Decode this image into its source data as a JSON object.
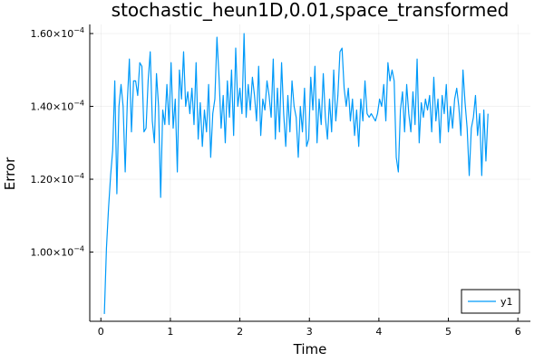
{
  "chart_data": {
    "type": "line",
    "title": "stochastic_heun1D,0.01,space_transformed",
    "xlabel": "Time",
    "ylabel": "Error",
    "xlim": [
      -0.16,
      6.18
    ],
    "ylim": [
      8.1e-05,
      0.0001625
    ],
    "x_ticks": [
      0,
      1,
      2,
      3,
      4,
      5,
      6
    ],
    "x_tick_labels": [
      "0",
      "1",
      "2",
      "3",
      "4",
      "5",
      "6"
    ],
    "y_ticks": [
      0.0001,
      0.00012,
      0.00014,
      0.00016
    ],
    "y_tick_labels": [
      {
        "mantissa": "1.00",
        "exp": "−4"
      },
      {
        "mantissa": "1.20",
        "exp": "−4"
      },
      {
        "mantissa": "1.40",
        "exp": "−4"
      },
      {
        "mantissa": "1.60",
        "exp": "−4"
      }
    ],
    "y_tick_base": "×10",
    "grid": true,
    "legend_position": "bottom-right",
    "series": [
      {
        "name": "y1",
        "color": "#009af9",
        "x_start": 0.05,
        "x_step": 0.03,
        "values": [
          8.3e-05,
          0.000101,
          0.000112,
          0.000121,
          0.000128,
          0.000147,
          0.000116,
          0.00014,
          0.000146,
          0.00014,
          0.000122,
          0.000141,
          0.000153,
          0.000133,
          0.000147,
          0.000147,
          0.000143,
          0.000152,
          0.000151,
          0.000133,
          0.000134,
          0.000147,
          0.000155,
          0.000136,
          0.00013,
          0.000149,
          0.00014,
          0.000115,
          0.000139,
          0.000135,
          0.000146,
          0.000135,
          0.000152,
          0.000134,
          0.000142,
          0.000122,
          0.00015,
          0.000142,
          0.000155,
          0.00014,
          0.000144,
          0.000138,
          0.000145,
          0.000135,
          0.000152,
          0.000131,
          0.000141,
          0.000129,
          0.000139,
          0.000133,
          0.000146,
          0.000126,
          0.000138,
          0.000142,
          0.000159,
          0.000148,
          0.000134,
          0.000143,
          0.00013,
          0.000147,
          0.000137,
          0.00015,
          0.000132,
          0.000156,
          0.00014,
          0.000145,
          0.000138,
          0.00016,
          0.000137,
          0.000146,
          0.000139,
          0.000148,
          0.000143,
          0.000136,
          0.000151,
          0.000132,
          0.000142,
          0.000139,
          0.000147,
          0.000143,
          0.000137,
          0.000153,
          0.000131,
          0.000145,
          0.000133,
          0.000152,
          0.000138,
          0.000129,
          0.000143,
          0.000133,
          0.000147,
          0.00014,
          0.000137,
          0.000126,
          0.00014,
          0.000133,
          0.000145,
          0.000129,
          0.000131,
          0.000148,
          0.000139,
          0.000151,
          0.00013,
          0.000142,
          0.000135,
          0.000149,
          0.000137,
          0.000131,
          0.000142,
          0.000133,
          0.00015,
          0.000136,
          0.000143,
          0.000155,
          0.000156,
          0.000145,
          0.00014,
          0.000145,
          0.000136,
          0.000142,
          0.000132,
          0.000139,
          0.000129,
          0.000142,
          0.000136,
          0.000147,
          0.000138,
          0.000137,
          0.000138,
          0.000137,
          0.000136,
          0.000138,
          0.000142,
          0.00014,
          0.000146,
          0.000136,
          0.000152,
          0.000147,
          0.00015,
          0.000147,
          0.000126,
          0.000122,
          0.000139,
          0.000144,
          0.000133,
          0.000146,
          0.000138,
          0.000133,
          0.000144,
          0.000135,
          0.000153,
          0.00013,
          0.000141,
          0.000137,
          0.000142,
          0.000139,
          0.000143,
          0.000133,
          0.000148,
          0.000136,
          0.000142,
          0.00013,
          0.000143,
          0.000138,
          0.000146,
          0.000133,
          0.00014,
          0.000134,
          0.000142,
          0.000145,
          0.00014,
          0.000132,
          0.00015,
          0.000141,
          0.000134,
          0.000121,
          0.000134,
          0.000137,
          0.000143,
          0.000132,
          0.000138,
          0.000121,
          0.000139,
          0.000125,
          0.000138
        ]
      }
    ]
  }
}
